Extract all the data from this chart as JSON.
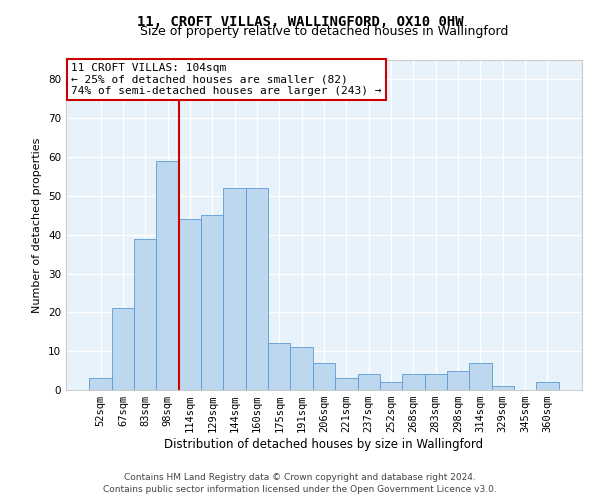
{
  "title": "11, CROFT VILLAS, WALLINGFORD, OX10 0HW",
  "subtitle": "Size of property relative to detached houses in Wallingford",
  "xlabel": "Distribution of detached houses by size in Wallingford",
  "ylabel": "Number of detached properties",
  "categories": [
    "52sqm",
    "67sqm",
    "83sqm",
    "98sqm",
    "114sqm",
    "129sqm",
    "144sqm",
    "160sqm",
    "175sqm",
    "191sqm",
    "206sqm",
    "221sqm",
    "237sqm",
    "252sqm",
    "268sqm",
    "283sqm",
    "298sqm",
    "314sqm",
    "329sqm",
    "345sqm",
    "360sqm"
  ],
  "values": [
    3,
    21,
    39,
    59,
    44,
    45,
    52,
    52,
    12,
    11,
    7,
    3,
    4,
    2,
    4,
    4,
    5,
    7,
    1,
    0,
    2
  ],
  "bar_color": "#BDD7EE",
  "bar_edge_color": "#5B9BD5",
  "background_color": "#E8F2FB",
  "grid_color": "#FFFFFF",
  "vline_color": "#CC0000",
  "vline_position": 3.5,
  "annotation_text": "11 CROFT VILLAS: 104sqm\n← 25% of detached houses are smaller (82)\n74% of semi-detached houses are larger (243) →",
  "ylim": [
    0,
    85
  ],
  "yticks": [
    0,
    10,
    20,
    30,
    40,
    50,
    60,
    70,
    80
  ],
  "footer_line1": "Contains HM Land Registry data © Crown copyright and database right 2024.",
  "footer_line2": "Contains public sector information licensed under the Open Government Licence v3.0.",
  "title_fontsize": 10,
  "subtitle_fontsize": 9,
  "xlabel_fontsize": 8.5,
  "ylabel_fontsize": 8,
  "tick_fontsize": 7.5,
  "annotation_fontsize": 8,
  "footer_fontsize": 6.5
}
